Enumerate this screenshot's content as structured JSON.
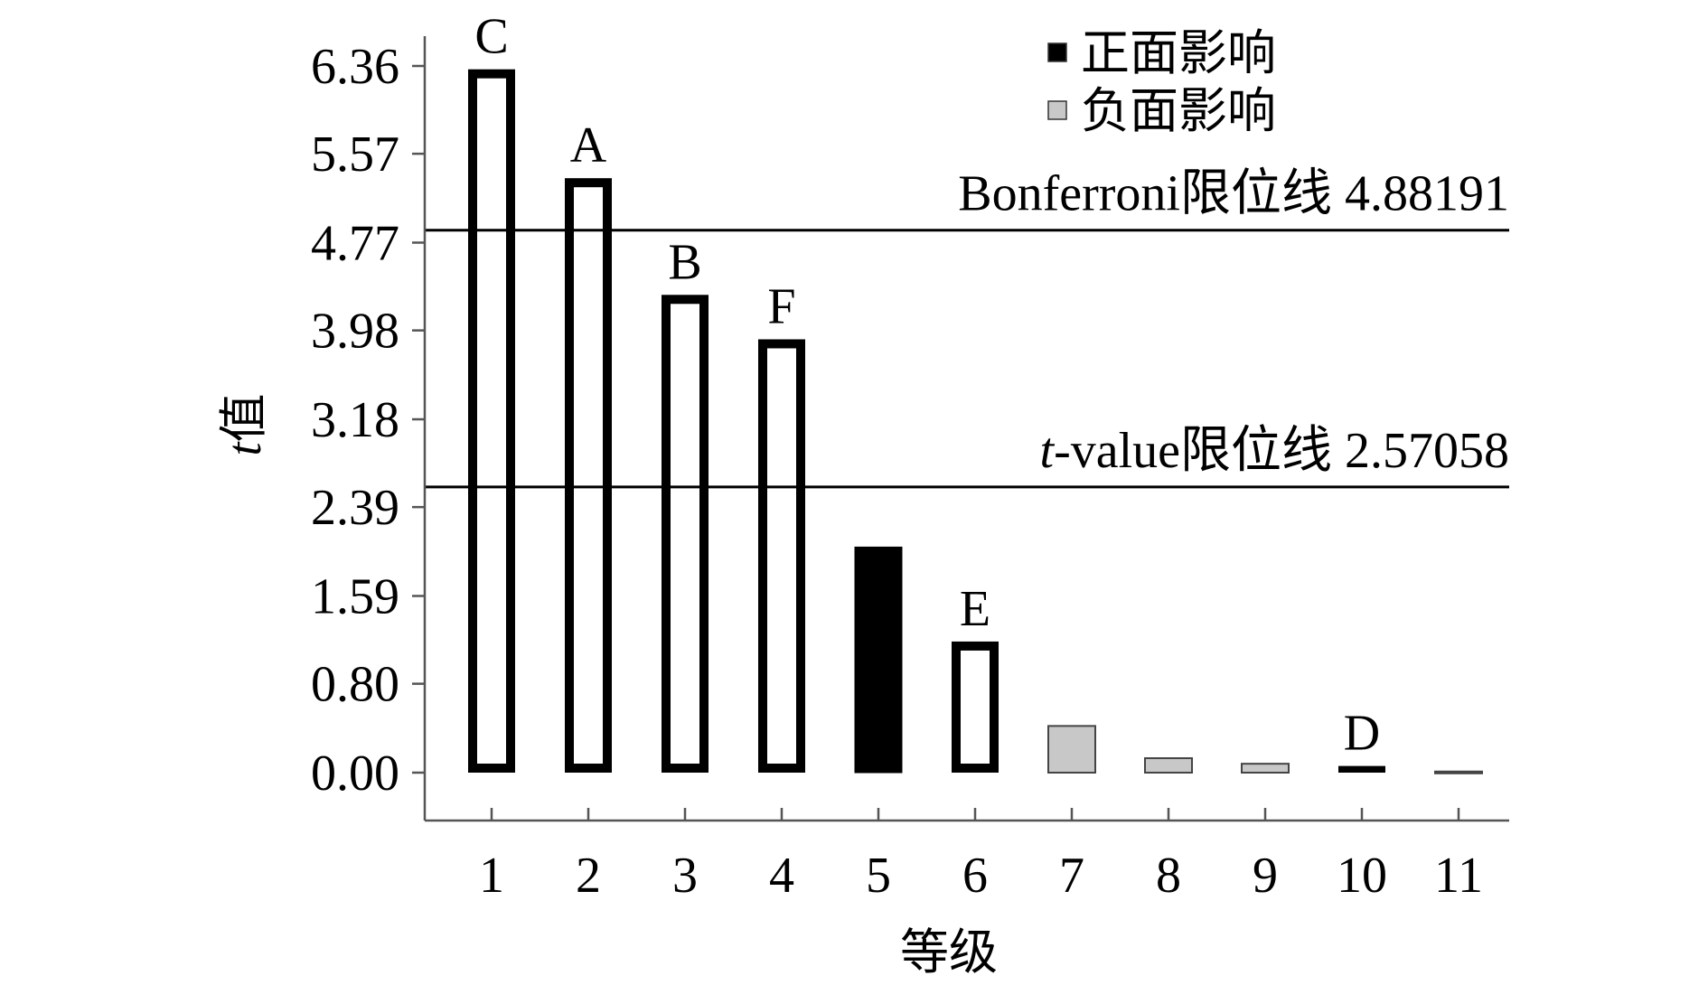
{
  "chart_data": {
    "type": "bar",
    "ylabel_italic": "t",
    "ylabel_rest": "值",
    "xlabel": "等级",
    "categories": [
      "1",
      "2",
      "3",
      "4",
      "5",
      "6",
      "7",
      "8",
      "9",
      "10",
      "11"
    ],
    "yticks": [
      "0.00",
      "0.80",
      "1.59",
      "2.39",
      "3.18",
      "3.98",
      "4.77",
      "5.57",
      "6.36"
    ],
    "ylim": [
      0,
      6.36
    ],
    "values": [
      6.33,
      5.35,
      4.3,
      3.9,
      2.03,
      1.18,
      0.42,
      0.13,
      0.08,
      0.06,
      0.01
    ],
    "bar_letters": [
      "C",
      "A",
      "B",
      "F",
      "",
      "E",
      "",
      "",
      "",
      "D",
      ""
    ],
    "bar_styles": [
      "outline",
      "outline",
      "outline",
      "outline",
      "positive",
      "outline",
      "negative",
      "negative",
      "negative",
      "outline",
      "negative"
    ],
    "legend": [
      {
        "label": "正面影响",
        "style": "positive"
      },
      {
        "label": "负面影响",
        "style": "negative"
      }
    ],
    "thresholds": [
      {
        "value": 4.88191,
        "label_prefix": "",
        "label_rest": "Bonferroni限位线 4.88191"
      },
      {
        "value": 2.57058,
        "label_prefix": "t",
        "label_rest": "-value限位线 2.57058"
      }
    ],
    "colors": {
      "positive": "#000000",
      "negative": "#c8c8c8",
      "outline": "#000000",
      "axis": "#555555"
    },
    "grid": false,
    "legend_position": "top-right"
  }
}
